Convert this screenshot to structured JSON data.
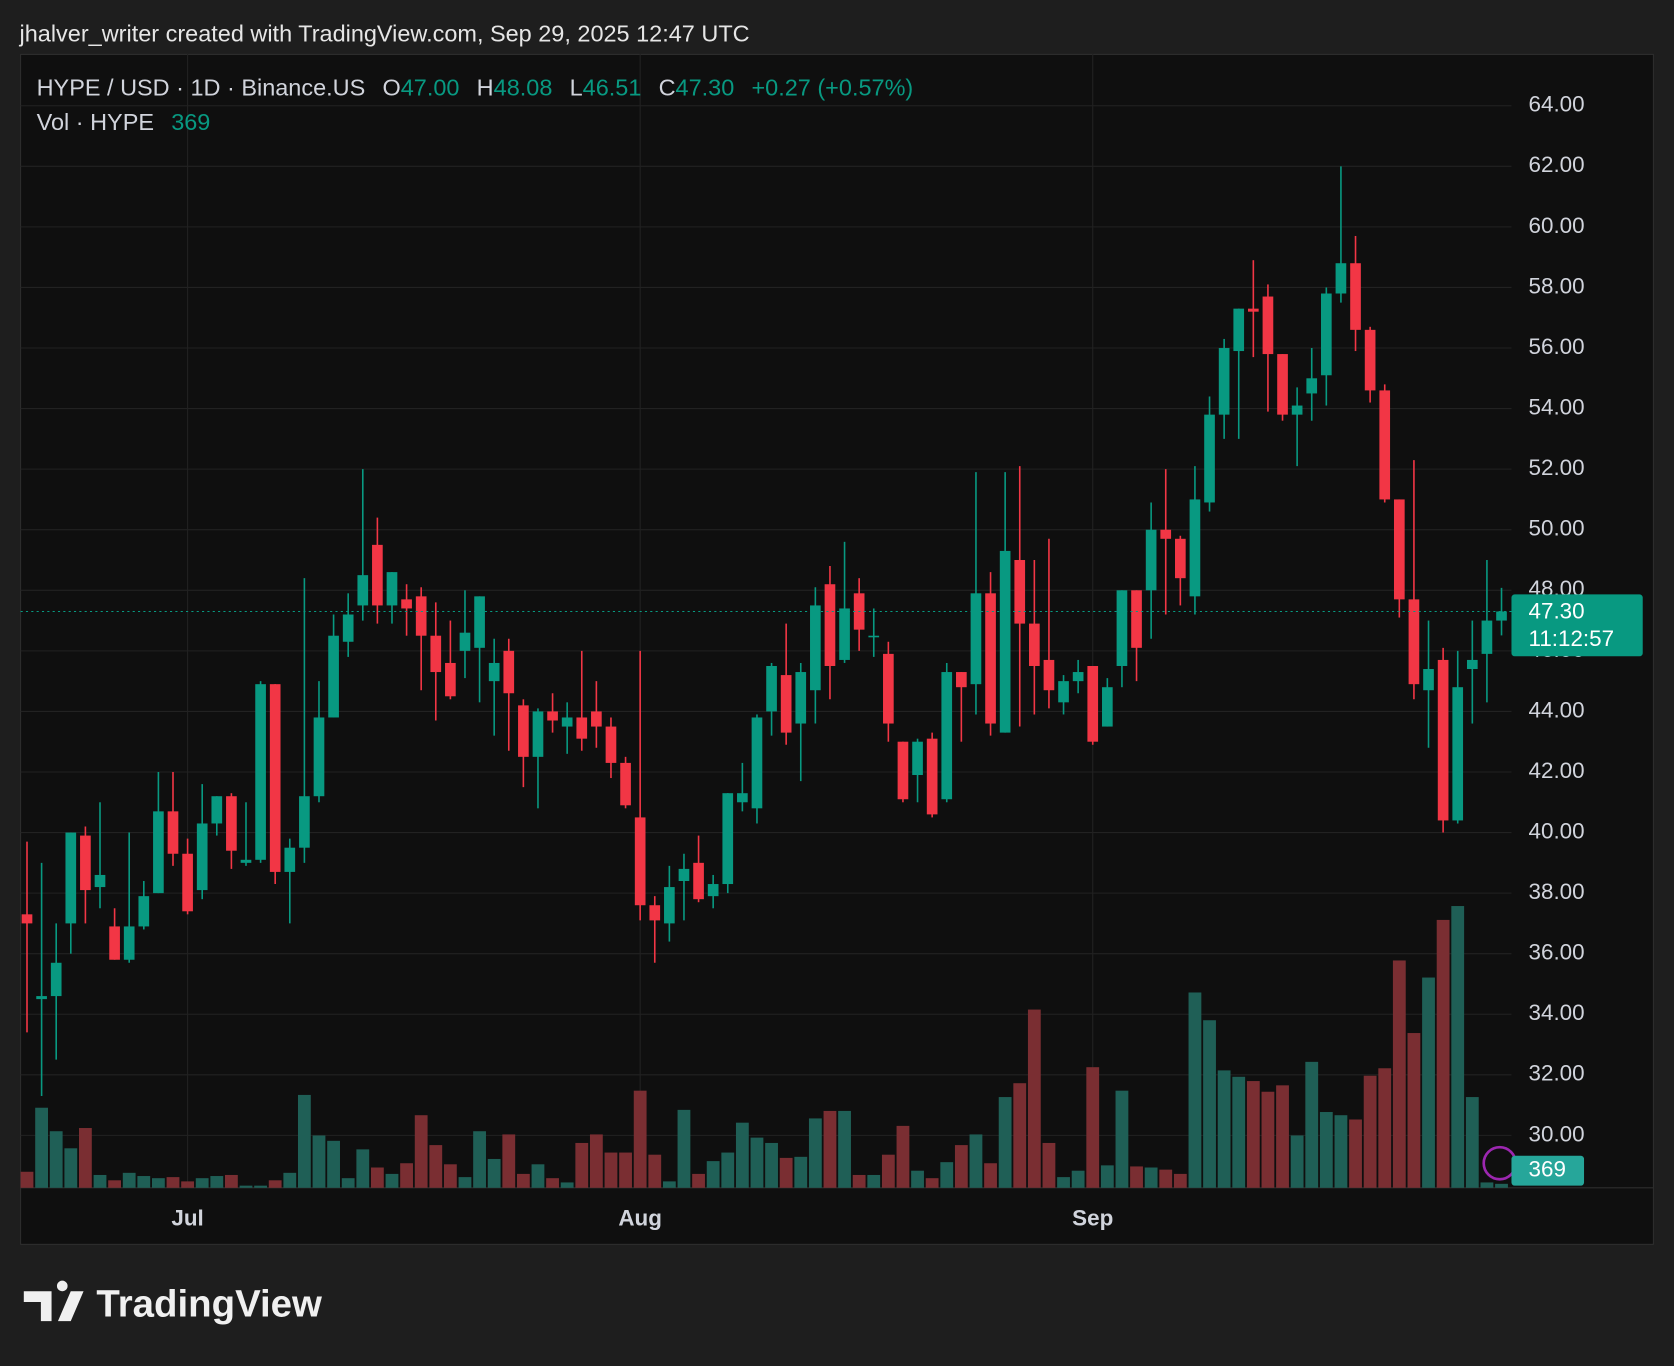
{
  "chart_data": {
    "type": "candlestick",
    "credit": "jhalver_writer created with TradingView.com, Sep 29, 2025 12:47 UTC",
    "title": "HYPE / USD · 1D · Binance.US",
    "ohlc_letters": {
      "open": "O",
      "high": "H",
      "low": "L",
      "close": "C"
    },
    "ohlc_labels": {
      "open": "47.00",
      "high": "48.08",
      "low": "46.51",
      "close": "47.30"
    },
    "change": "+0.27 (+0.57%)",
    "volume_title": "Vol · HYPE",
    "countdown": "11:12:57",
    "brand": "TradingView",
    "up_color": "#089981",
    "down_color": "#f23645",
    "volume_up_color": "#1f5f56",
    "volume_down_color": "#7a2e32",
    "grid": true,
    "categories": [
      null,
      null,
      null,
      null,
      null,
      null,
      null,
      null,
      null,
      null,
      null,
      "Jul",
      null,
      null,
      null,
      null,
      null,
      null,
      null,
      null,
      null,
      null,
      null,
      null,
      null,
      null,
      null,
      null,
      null,
      null,
      null,
      null,
      null,
      null,
      null,
      null,
      null,
      null,
      null,
      null,
      null,
      null,
      "Aug",
      null,
      null,
      null,
      null,
      null,
      null,
      null,
      null,
      null,
      null,
      null,
      null,
      null,
      null,
      null,
      null,
      null,
      null,
      null,
      null,
      null,
      null,
      null,
      null,
      null,
      null,
      null,
      null,
      null,
      null,
      "Sep",
      null,
      null,
      null,
      null,
      null,
      null,
      null,
      null,
      null,
      null,
      null,
      null,
      null,
      null,
      null,
      null,
      null,
      null,
      null,
      null,
      null,
      null,
      null,
      null,
      null,
      null,
      null,
      null
    ],
    "open": [
      37.3,
      34.5,
      34.6,
      37.0,
      39.9,
      38.2,
      36.9,
      35.8,
      36.9,
      38.0,
      40.7,
      39.3,
      38.1,
      40.3,
      41.2,
      39.0,
      39.1,
      44.9,
      38.7,
      39.5,
      41.2,
      43.8,
      46.3,
      47.5,
      49.5,
      47.5,
      47.7,
      47.8,
      46.5,
      45.6,
      46.0,
      46.1,
      45.0,
      46.0,
      44.2,
      42.5,
      44.0,
      43.5,
      43.8,
      44.0,
      43.5,
      42.3,
      40.5,
      37.6,
      37.0,
      38.4,
      39.0,
      37.9,
      38.3,
      41.0,
      40.8,
      44.0,
      45.2,
      43.6,
      44.7,
      48.2,
      45.7,
      47.9,
      46.45,
      45.9,
      43.0,
      41.9,
      43.1,
      41.1,
      45.3,
      44.9,
      47.9,
      43.3,
      49.0,
      46.9,
      45.7,
      44.3,
      45.0,
      45.5,
      43.5,
      45.5,
      48.0,
      48.0,
      50.0,
      49.7,
      47.8,
      50.9,
      53.8,
      55.9,
      57.3,
      57.7,
      55.8,
      53.8,
      54.5,
      55.1,
      57.8,
      58.8,
      56.6,
      54.6,
      51.0,
      47.7,
      44.7,
      45.7,
      40.4,
      45.4,
      45.9,
      47.0
    ],
    "high": [
      39.7,
      39.0,
      37.0,
      40.0,
      40.2,
      41.0,
      37.5,
      40.0,
      38.4,
      42.0,
      42.0,
      39.8,
      41.6,
      41.2,
      41.3,
      41.0,
      45.0,
      44.9,
      39.8,
      48.4,
      45.0,
      47.2,
      47.9,
      52.0,
      50.4,
      48.6,
      48.2,
      48.1,
      47.6,
      47.0,
      48.0,
      47.8,
      46.4,
      46.4,
      44.4,
      44.1,
      44.6,
      44.3,
      46.0,
      45.0,
      43.8,
      42.5,
      46.0,
      37.9,
      38.9,
      39.3,
      39.9,
      38.6,
      41.3,
      42.3,
      43.9,
      45.6,
      46.9,
      45.6,
      48.1,
      48.8,
      49.6,
      48.4,
      47.4,
      46.3,
      43.0,
      43.1,
      43.3,
      45.6,
      45.3,
      51.9,
      48.6,
      51.9,
      52.1,
      49.0,
      49.7,
      45.2,
      45.7,
      45.5,
      45.1,
      48.0,
      48.0,
      50.9,
      52.0,
      49.8,
      52.1,
      54.4,
      56.3,
      57.3,
      58.9,
      58.1,
      55.8,
      54.7,
      56.0,
      58.0,
      62.0,
      59.7,
      56.7,
      54.8,
      51.0,
      52.3,
      47.0,
      46.1,
      46.0,
      47.0,
      49.0,
      48.08
    ],
    "low": [
      33.4,
      31.3,
      32.5,
      36.0,
      37.0,
      37.5,
      35.8,
      35.7,
      36.8,
      38.0,
      38.9,
      37.3,
      37.8,
      39.9,
      38.8,
      38.9,
      39.0,
      38.3,
      37.0,
      39.0,
      41.0,
      43.8,
      45.8,
      47.0,
      46.9,
      46.9,
      46.5,
      44.7,
      43.7,
      44.4,
      45.1,
      44.3,
      43.2,
      42.7,
      41.5,
      40.8,
      43.3,
      42.6,
      42.7,
      42.8,
      41.8,
      40.8,
      37.1,
      35.7,
      36.4,
      37.1,
      37.7,
      37.5,
      38.0,
      40.7,
      40.3,
      43.2,
      42.9,
      41.7,
      43.6,
      44.4,
      45.6,
      46.0,
      45.8,
      43.0,
      41.0,
      41.0,
      40.5,
      41.0,
      43.0,
      43.9,
      43.2,
      43.3,
      43.5,
      43.9,
      44.1,
      43.9,
      44.6,
      42.9,
      43.5,
      44.8,
      45.0,
      46.4,
      47.2,
      47.5,
      47.2,
      50.6,
      53.0,
      53.0,
      55.7,
      53.9,
      53.6,
      52.1,
      53.6,
      54.1,
      57.5,
      55.9,
      54.2,
      50.9,
      47.1,
      44.4,
      42.8,
      40.0,
      40.3,
      43.6,
      44.3,
      46.51
    ],
    "close": [
      37.0,
      34.6,
      35.7,
      40.0,
      38.1,
      38.6,
      35.8,
      36.9,
      37.9,
      40.7,
      39.3,
      37.4,
      40.3,
      41.2,
      39.4,
      39.1,
      44.9,
      38.7,
      39.5,
      41.2,
      43.8,
      46.5,
      47.2,
      48.5,
      47.5,
      48.6,
      47.4,
      46.5,
      45.3,
      44.5,
      46.6,
      47.8,
      45.6,
      44.6,
      42.5,
      44.0,
      43.7,
      43.8,
      43.1,
      43.5,
      42.3,
      40.9,
      37.6,
      37.1,
      38.2,
      38.8,
      37.8,
      38.3,
      41.3,
      41.3,
      43.8,
      45.5,
      43.3,
      45.3,
      47.5,
      45.5,
      47.4,
      46.7,
      46.5,
      43.6,
      41.1,
      43.0,
      40.6,
      45.3,
      44.8,
      47.9,
      43.6,
      49.3,
      46.9,
      45.5,
      44.7,
      45.0,
      45.3,
      43.0,
      44.8,
      48.0,
      46.1,
      50.0,
      49.7,
      48.4,
      51.0,
      53.8,
      56.0,
      57.3,
      57.2,
      55.8,
      53.8,
      54.1,
      55.0,
      57.8,
      58.8,
      56.6,
      54.6,
      51.0,
      47.7,
      44.9,
      45.4,
      40.4,
      44.8,
      45.7,
      47.0,
      47.3
    ],
    "volume": [
      1500,
      7500,
      5300,
      3700,
      5600,
      1200,
      700,
      1400,
      1100,
      900,
      1000,
      600,
      900,
      1100,
      1200,
      200,
      200,
      700,
      1400,
      8700,
      4900,
      4400,
      900,
      3600,
      1900,
      1300,
      2300,
      6800,
      4000,
      2200,
      1000,
      5300,
      2700,
      5000,
      1300,
      2200,
      900,
      500,
      4200,
      5000,
      3300,
      3300,
      9100,
      3100,
      600,
      7300,
      1300,
      2500,
      3300,
      6100,
      4700,
      4200,
      2800,
      2900,
      6500,
      7200,
      7200,
      1200,
      1200,
      3100,
      5800,
      1600,
      900,
      2400,
      4000,
      5000,
      2300,
      8500,
      9800,
      16700,
      4200,
      1000,
      1600,
      11300,
      2100,
      9100,
      2000,
      1900,
      1700,
      1300,
      18300,
      15700,
      11000,
      10400,
      10000,
      9000,
      9600,
      4900,
      11800,
      7100,
      6800,
      6400,
      10500,
      11200,
      21300,
      14500,
      19700,
      25100,
      26400,
      8500,
      500,
      369
    ],
    "ylim": [
      28.27,
      65.73
    ],
    "yticks": [
      {
        "value": 30,
        "label": "30.00"
      },
      {
        "value": 32,
        "label": "32.00"
      },
      {
        "value": 34,
        "label": "34.00"
      },
      {
        "value": 36,
        "label": "36.00"
      },
      {
        "value": 38,
        "label": "38.00"
      },
      {
        "value": 40,
        "label": "40.00"
      },
      {
        "value": 42,
        "label": "42.00"
      },
      {
        "value": 44,
        "label": "44.00"
      },
      {
        "value": 46,
        "label": "46.00"
      },
      {
        "value": 48,
        "label": "48.00"
      },
      {
        "value": 50,
        "label": "50.00"
      },
      {
        "value": 52,
        "label": "52.00"
      },
      {
        "value": 54,
        "label": "54.00"
      },
      {
        "value": 56,
        "label": "56.00"
      },
      {
        "value": 58,
        "label": "58.00"
      },
      {
        "value": 60,
        "label": "60.00"
      },
      {
        "value": 62,
        "label": "62.00"
      },
      {
        "value": 64,
        "label": "64.00"
      }
    ]
  }
}
